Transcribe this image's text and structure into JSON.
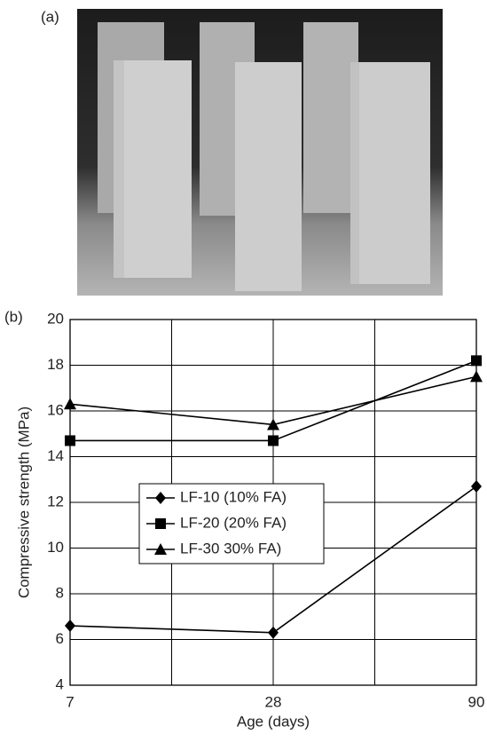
{
  "panel_labels": [
    "(a)",
    "(b)"
  ],
  "chart_data": {
    "type": "line",
    "x_label": "Age (days)",
    "y_label": "Compressive strength (MPa)",
    "categories": [
      "7",
      "28",
      "90"
    ],
    "series": [
      {
        "name": "LF-10 (10% FA)",
        "color": "#000000",
        "marker": "diamond",
        "values": [
          6.6,
          6.3,
          12.7
        ]
      },
      {
        "name": "LF-20 (20% FA)",
        "color": "#000000",
        "marker": "square",
        "values": [
          14.7,
          14.7,
          18.2
        ]
      },
      {
        "name": "LF-30 30% FA)",
        "color": "#000000",
        "marker": "triangle",
        "values": [
          16.3,
          15.4,
          17.5
        ]
      }
    ],
    "ylim": [
      4,
      20
    ],
    "yticks": [
      4,
      6,
      8,
      10,
      12,
      14,
      16,
      18,
      20
    ],
    "grid": true,
    "legend": "center-left"
  }
}
